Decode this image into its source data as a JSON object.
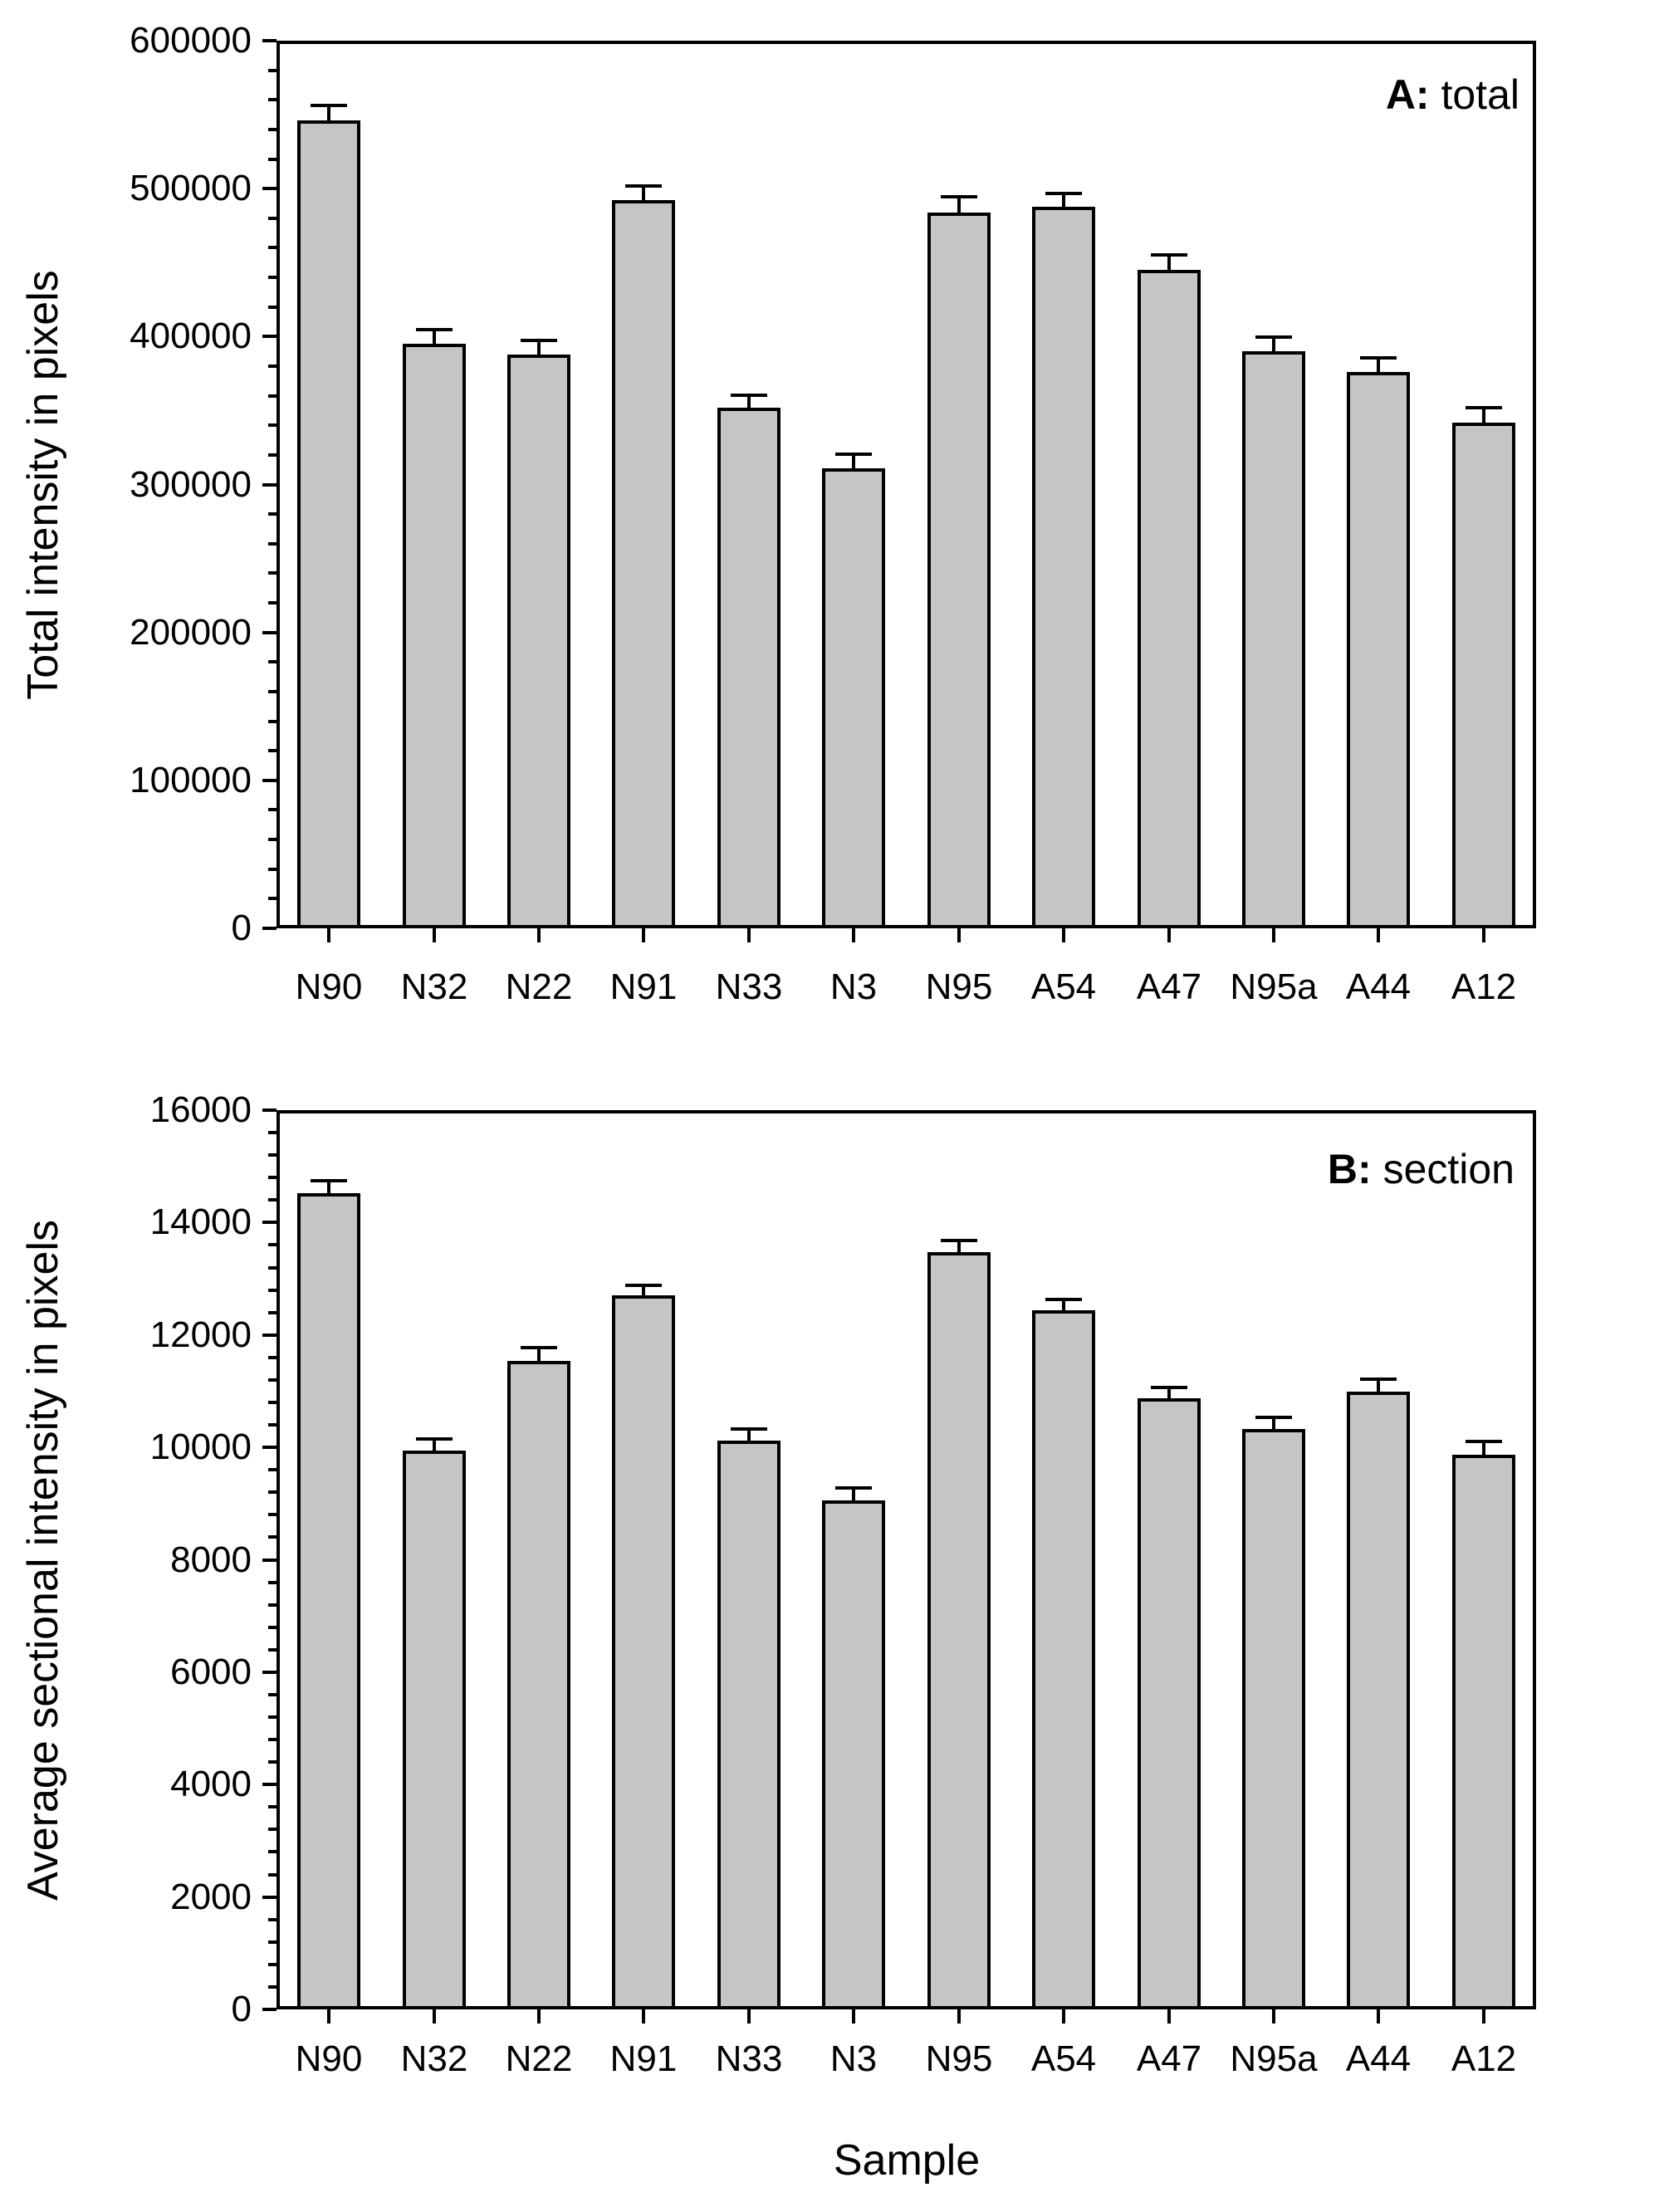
{
  "figure_background": "#ffffff",
  "line_color": "#000000",
  "chart_data": [
    {
      "type": "bar",
      "panel_label_bold": "A:",
      "panel_label_rest": " total",
      "ylabel": "Total intensity in pixels",
      "xlabel": "",
      "ylim": [
        0,
        600000
      ],
      "y_major_step": 100000,
      "y_minor_step": 20000,
      "ytick_labels": [
        "0",
        "100000",
        "200000",
        "300000",
        "400000",
        "500000",
        "600000"
      ],
      "grid": false,
      "legend": "none",
      "bar_color": "#c5c5c5",
      "categories": [
        "N90",
        "N32",
        "N22",
        "N91",
        "N33",
        "N3",
        "N95",
        "A54",
        "A47",
        "N95a",
        "A44",
        "A12"
      ],
      "values": [
        546000,
        395000,
        388000,
        492000,
        352000,
        311000,
        484000,
        488000,
        445000,
        390000,
        376000,
        342000
      ],
      "errors": [
        10000,
        9500,
        9500,
        10000,
        8500,
        9500,
        10500,
        9000,
        10000,
        9500,
        9500,
        10000
      ]
    },
    {
      "type": "bar",
      "panel_label_bold": "B:",
      "panel_label_rest": " section",
      "ylabel": "Average sectional intensity in pixels",
      "xlabel": "Sample",
      "ylim": [
        0,
        16000
      ],
      "y_major_step": 2000,
      "y_minor_step": 400,
      "ytick_labels": [
        "0",
        "2000",
        "4000",
        "6000",
        "8000",
        "10000",
        "12000",
        "14000",
        "16000"
      ],
      "grid": false,
      "legend": "none",
      "bar_color": "#c5c5c5",
      "categories": [
        "N90",
        "N32",
        "N22",
        "N91",
        "N33",
        "N3",
        "N95",
        "A54",
        "A47",
        "N95a",
        "A44",
        "A12"
      ],
      "values": [
        14530,
        9950,
        11540,
        12700,
        10120,
        9060,
        13480,
        12440,
        10870,
        10330,
        10990,
        9870
      ],
      "errors": [
        220,
        200,
        230,
        190,
        200,
        220,
        200,
        190,
        200,
        200,
        220,
        240
      ]
    }
  ]
}
